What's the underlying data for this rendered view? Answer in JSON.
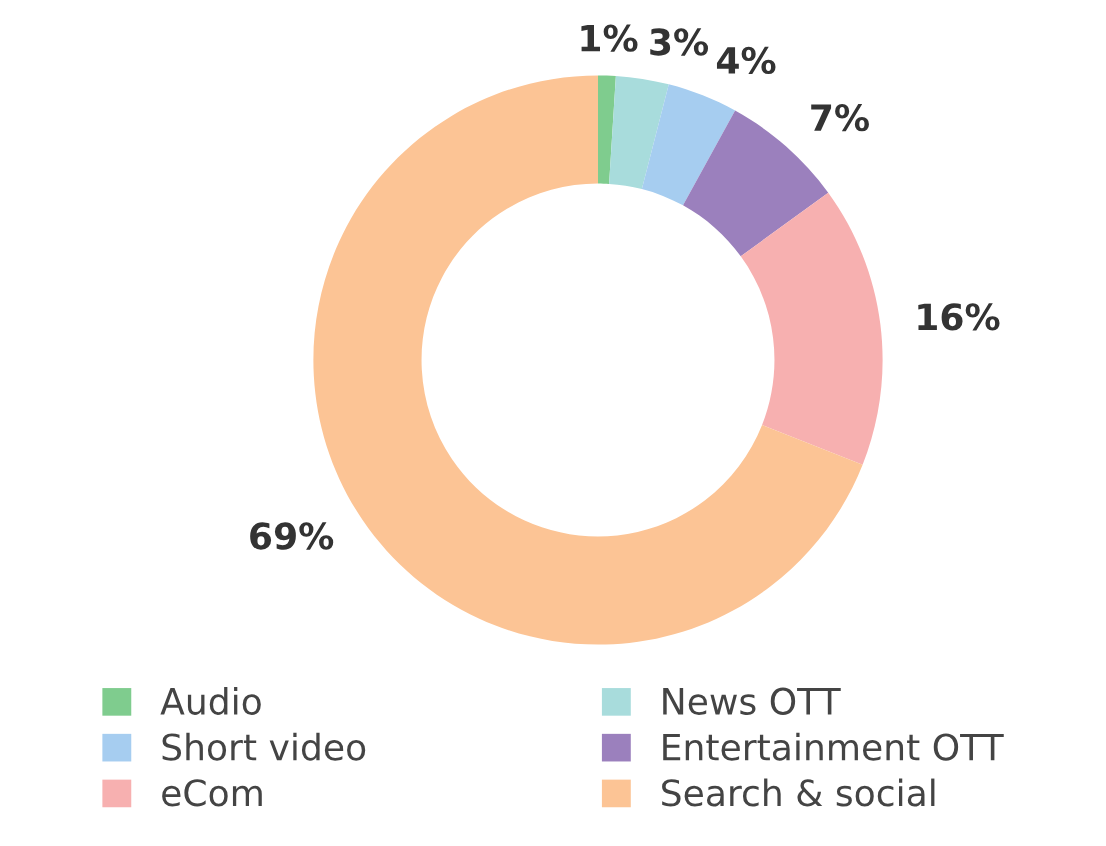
{
  "chart_data": {
    "type": "donut",
    "categories": [
      "Audio",
      "News OTT",
      "Short video",
      "Entertainment OTT",
      "eCom",
      "Search & social"
    ],
    "values": [
      1,
      3,
      4,
      7,
      16,
      69
    ],
    "colors": [
      "#7fcc8e",
      "#a8dcdc",
      "#a6cdf0",
      "#9b80bd",
      "#f7b0b0",
      "#fcc495"
    ],
    "value_labels": [
      "1%",
      "3%",
      "4%",
      "7%",
      "16%",
      "69%"
    ],
    "legend": "bottom"
  }
}
